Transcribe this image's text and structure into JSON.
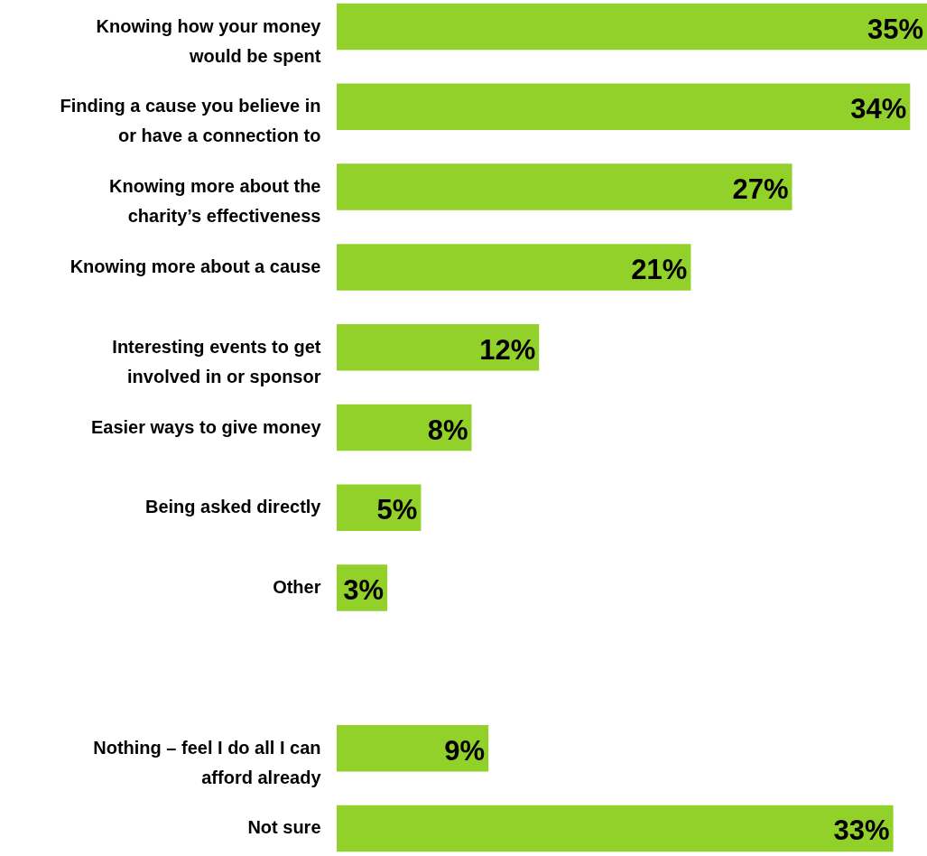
{
  "chart_data": {
    "type": "bar",
    "orientation": "horizontal",
    "color": "#92d12a",
    "categories": [
      "Knowing how your money\nwould be spent",
      "Finding a cause you believe in\nor have a connection to",
      "Knowing more about the\ncharity’s effectiveness",
      "Knowing more about a cause",
      "Interesting events to get\ninvolved in or sponsor",
      "Easier ways to give money",
      "Being asked directly",
      "Other",
      null,
      "Nothing – feel I do all I can\nafford already",
      "Not sure"
    ],
    "values": [
      35,
      34,
      27,
      21,
      12,
      8,
      5,
      3,
      null,
      9,
      33
    ],
    "value_labels": [
      "35%",
      "34%",
      "27%",
      "21%",
      "12%",
      "8%",
      "5%",
      "3%",
      null,
      "9%",
      "33%"
    ]
  }
}
